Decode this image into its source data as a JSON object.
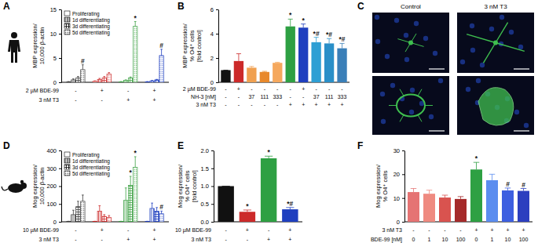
{
  "chart_data": [
    {
      "type": "bar",
      "title": "A",
      "y_label": [
        "MBP expression/",
        "10,000 β-actin"
      ],
      "categories": [
        null,
        null,
        null,
        null
      ],
      "colors": [
        "#3c3c3c",
        "#cc2a2a",
        "#3da144",
        "#1f3fbf"
      ],
      "ylim": [
        0,
        15
      ],
      "yticks": [
        0,
        5,
        10,
        15
      ],
      "legend": "top-left",
      "series": [
        {
          "name": "Proliferating",
          "values": [
            0.1,
            0.2,
            0.1,
            0.1
          ],
          "errors": [
            0.05,
            0.1,
            0.05,
            0.05
          ],
          "annotations": [
            null,
            null,
            null,
            null
          ]
        },
        {
          "name": "1d differentiating",
          "values": [
            0.5,
            0.6,
            0.4,
            0.3
          ],
          "errors": [
            0.2,
            0.2,
            0.1,
            0.1
          ],
          "annotations": [
            null,
            null,
            null,
            null
          ]
        },
        {
          "name": "3d differentiating",
          "values": [
            0.9,
            0.9,
            0.9,
            0.5
          ],
          "errors": [
            0.3,
            0.3,
            0.2,
            0.1
          ],
          "annotations": [
            null,
            null,
            null,
            null
          ]
        },
        {
          "name": "5d differentiating",
          "values": [
            2.6,
            1.7,
            11.5,
            5.5
          ],
          "errors": [
            1.0,
            0.3,
            1.0,
            1.3
          ],
          "annotations": [
            "#",
            null,
            "*",
            "#"
          ]
        }
      ],
      "conditions": [
        {
          "label": "2 µM BDE-99",
          "values": [
            "-",
            "+",
            "-",
            "+"
          ]
        },
        {
          "label": "3 nM T3",
          "values": [
            "-",
            "-",
            "+",
            "+"
          ]
        }
      ]
    },
    {
      "type": "bar",
      "title": "B",
      "y_label": [
        "MBP expression/",
        "% O4⁺ cells",
        "[fold control]"
      ],
      "categories": [
        null,
        null,
        null,
        null,
        null,
        null,
        null,
        null,
        null,
        null
      ],
      "values": [
        1.0,
        1.75,
        1.2,
        0.85,
        1.6,
        4.6,
        4.5,
        3.3,
        3.2,
        2.8
      ],
      "errors": [
        0,
        0.6,
        0.1,
        0.05,
        0.05,
        0.6,
        0.3,
        0.4,
        0.4,
        0.4
      ],
      "annotations": [
        null,
        null,
        null,
        null,
        null,
        "*",
        "*",
        "*#",
        "*#",
        "*#"
      ],
      "colors": [
        "#111111",
        "#cc2a2a",
        "#f0a050",
        "#e8892c",
        "#f5a85e",
        "#2ea043",
        "#1f3fbf",
        "#2e9fd4",
        "#2a8fc8",
        "#3a7fb8"
      ],
      "ylim": [
        0,
        6
      ],
      "yticks": [
        0,
        2,
        4,
        6
      ],
      "conditions": [
        {
          "label": "2 µM BDE-99",
          "values": [
            "-",
            "+",
            "-",
            "-",
            "-",
            "-",
            "+",
            "-",
            "-",
            "-"
          ]
        },
        {
          "label": "NH-3 [nM]",
          "values": [
            "-",
            "-",
            "37",
            "111",
            "333",
            "-",
            "-",
            "37",
            "111",
            "333"
          ]
        },
        {
          "label": "3 nM T3",
          "values": [
            "-",
            "-",
            "-",
            "-",
            "-",
            "+",
            "+",
            "+",
            "+",
            "+"
          ]
        }
      ]
    },
    {
      "type": "image",
      "title": "C",
      "column_labels": [
        "Control",
        "3 nM T3"
      ]
    },
    {
      "type": "bar",
      "title": "D",
      "y_label": [
        "Mog expression/",
        "10,000 β-actin"
      ],
      "categories": [
        null,
        null,
        null,
        null
      ],
      "colors": [
        "#3c3c3c",
        "#cc2a2a",
        "#3da144",
        "#1f3fbf"
      ],
      "ylim": [
        0,
        400
      ],
      "yticks": [
        0,
        100,
        200,
        300,
        400
      ],
      "legend": "top-left",
      "series": [
        {
          "name": "Proliferating",
          "values": [
            2,
            2,
            2,
            2
          ],
          "errors": [
            1,
            1,
            1,
            1
          ],
          "annotations": [
            null,
            null,
            null,
            null
          ]
        },
        {
          "name": "1d differentiating",
          "values": [
            40,
            60,
            120,
            75
          ],
          "errors": [
            25,
            30,
            70,
            30
          ],
          "annotations": [
            null,
            null,
            null,
            null
          ]
        },
        {
          "name": "3d differentiating",
          "values": [
            85,
            30,
            205,
            60
          ],
          "errors": [
            30,
            10,
            50,
            20
          ],
          "annotations": [
            null,
            null,
            "*",
            null
          ]
        },
        {
          "name": "5d differentiating",
          "values": [
            115,
            25,
            305,
            45
          ],
          "errors": [
            35,
            10,
            60,
            15
          ],
          "annotations": [
            null,
            null,
            "*",
            "#"
          ]
        }
      ],
      "conditions": [
        {
          "label": "10 µM BDE-99",
          "values": [
            "-",
            "+",
            "-",
            "+"
          ]
        },
        {
          "label": "3 nM T3",
          "values": [
            "-",
            "-",
            "+",
            "+"
          ]
        }
      ]
    },
    {
      "type": "bar",
      "title": "E",
      "y_label": [
        "Mog expression/",
        "% O4⁺ cells",
        "[fold control]"
      ],
      "categories": [
        null,
        null,
        null,
        null
      ],
      "values": [
        1.0,
        0.28,
        1.78,
        0.35
      ],
      "errors": [
        0,
        0.05,
        0.06,
        0.05
      ],
      "annotations": [
        null,
        "*",
        "*",
        "*#"
      ],
      "colors": [
        "#111111",
        "#cc2a2a",
        "#2ea043",
        "#1f3fbf"
      ],
      "ylim": [
        0,
        2
      ],
      "yticks": [
        {
          "value": 0,
          "label": "0.0"
        },
        0.5,
        {
          "value": 1,
          "label": "1.0"
        },
        1.5,
        {
          "value": 2,
          "label": "2.0"
        }
      ],
      "conditions": [
        {
          "label": "10 µM BDE-99",
          "values": [
            "-",
            "+",
            "-",
            "+"
          ]
        },
        {
          "label": "3 nM T3",
          "values": [
            "-",
            "-",
            "+",
            "+"
          ]
        }
      ]
    },
    {
      "type": "bar",
      "title": "F",
      "y_label": [
        "Mog expression/",
        "% O4⁺ cells"
      ],
      "categories": [
        null,
        null,
        null,
        null,
        null,
        null,
        null,
        null
      ],
      "values": [
        12.5,
        11.8,
        10.2,
        9.6,
        22,
        17.5,
        13.2,
        13
      ],
      "errors": [
        1.5,
        1.5,
        1,
        1,
        3,
        2.5,
        1,
        1
      ],
      "annotations": [
        null,
        null,
        null,
        null,
        "*",
        null,
        "#",
        "#"
      ],
      "colors": [
        "#e57373",
        "#ef8a80",
        "#d9534f",
        "#a52a2a",
        "#2ea043",
        "#5b8def",
        "#3d5fe0",
        "#2c3fbf"
      ],
      "ylim": [
        0,
        30
      ],
      "yticks": [
        0,
        10,
        20,
        30
      ],
      "conditions": [
        {
          "label": "3 nM T3",
          "values": [
            "-",
            "-",
            "-",
            "-",
            "+",
            "+",
            "+",
            "+"
          ]
        },
        {
          "label": "BDE-99 [nM]",
          "values": [
            "0",
            "1",
            "10",
            "100",
            "0",
            "1",
            "10",
            "100"
          ]
        }
      ]
    }
  ]
}
